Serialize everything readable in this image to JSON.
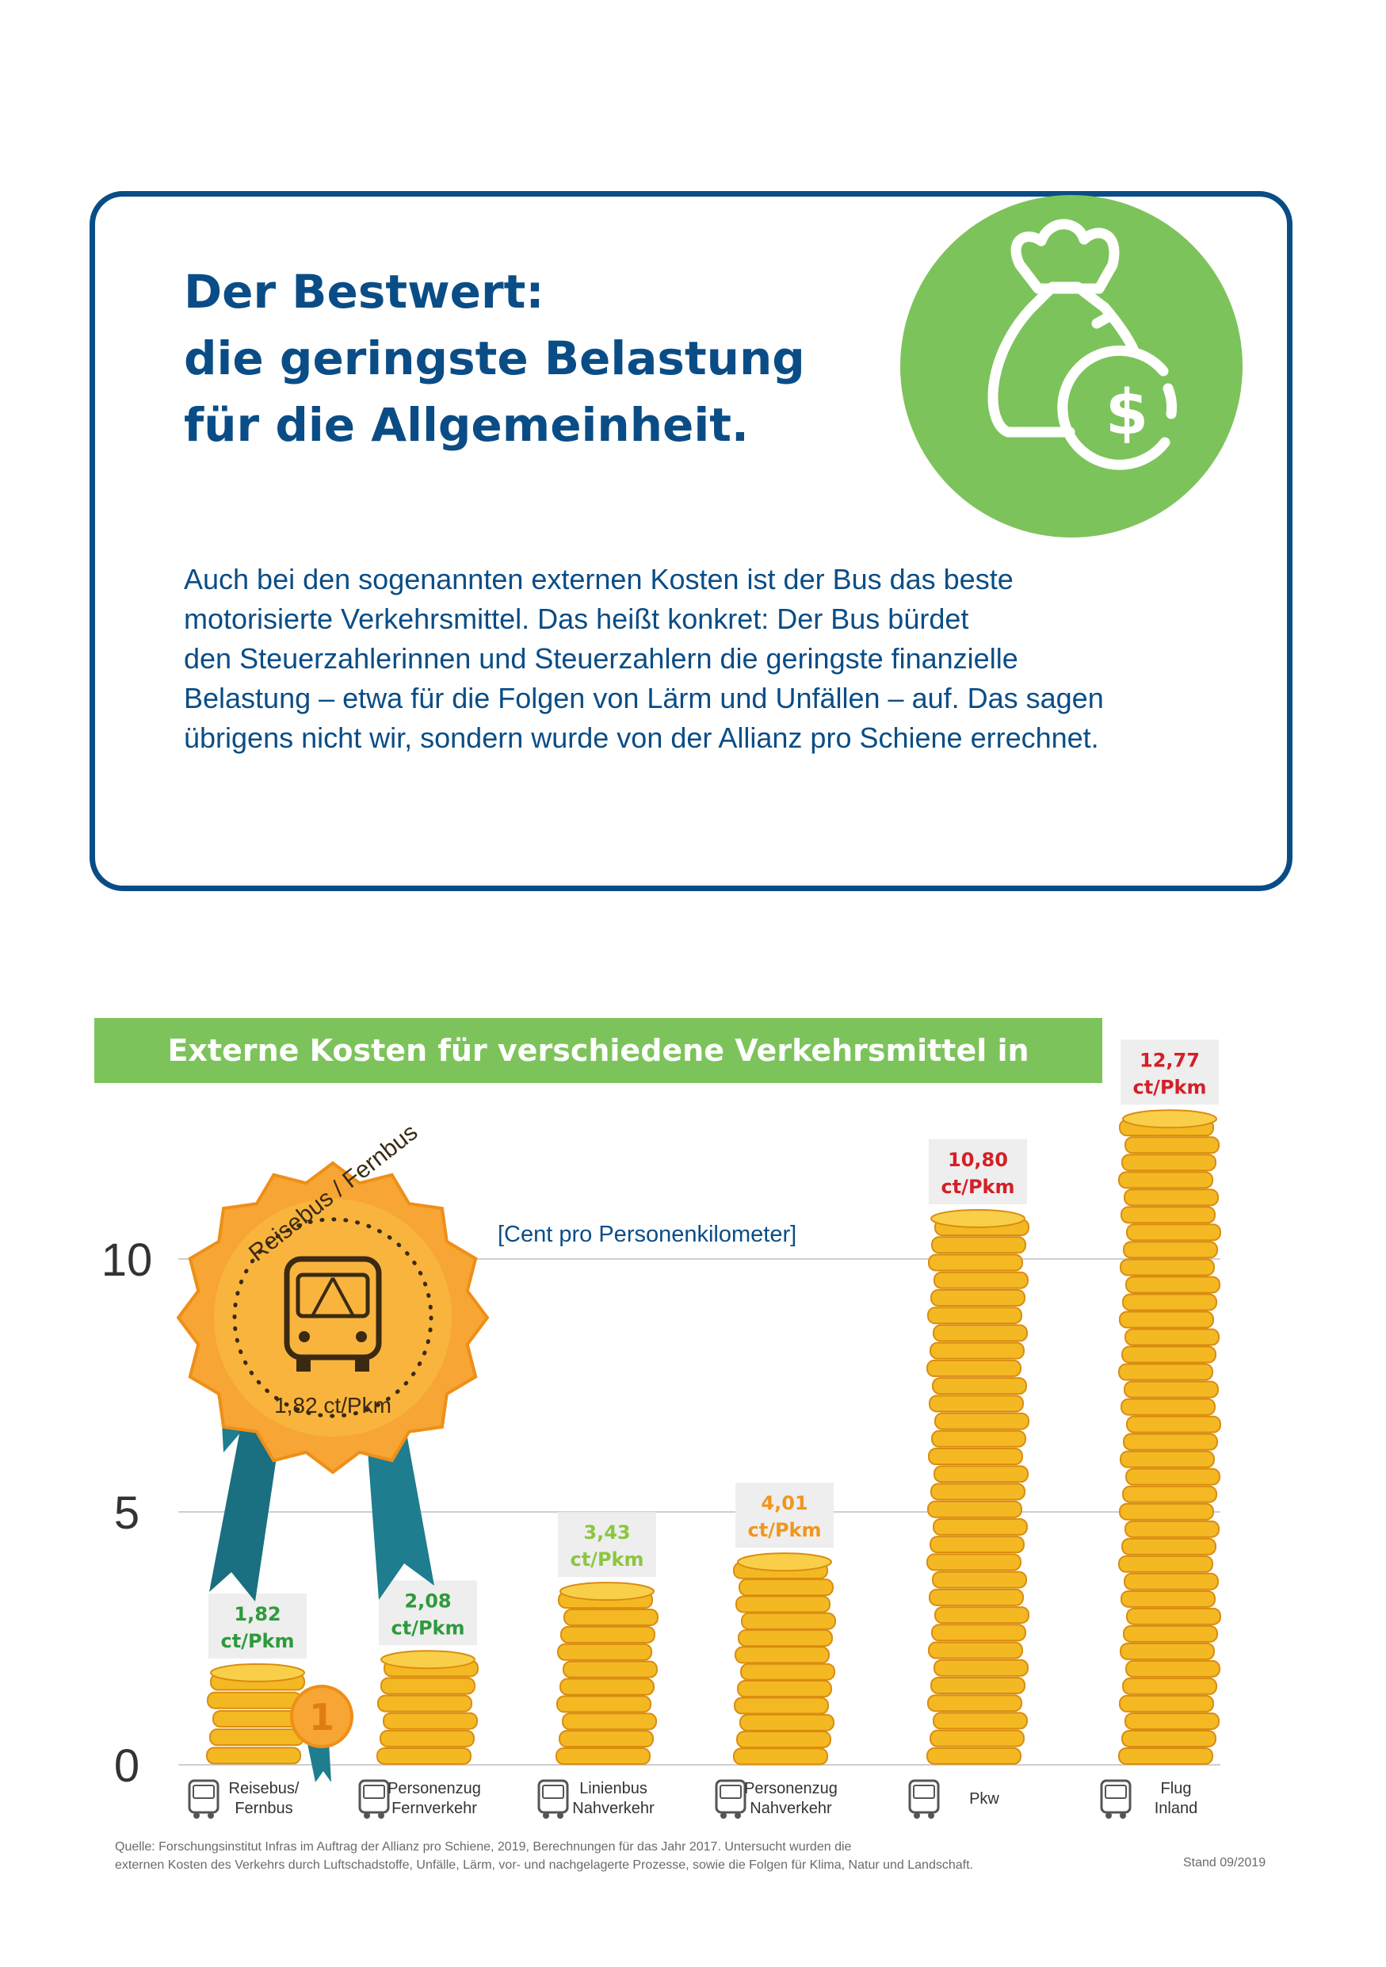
{
  "info_box": {
    "title_lines": [
      "Der Bestwert:",
      "die geringste Belastung",
      "für die Allgemeinheit."
    ],
    "body_lines": [
      "Auch bei den sogenannten externen Kosten ist der Bus das beste",
      "motorisierte Verkehrsmittel. Das heißt konkret: Der Bus bürdet",
      "den Steuerzahlerinnen und Steuerzahlern die geringste finanzielle",
      "Belastung – etwa für die Folgen von Lärm und Unfällen – auf. Das sagen",
      "übrigens nicht wir, sondern wurde von der Allianz pro Schiene errechnet."
    ],
    "icon": "money-bag-dollar-icon",
    "icon_glyph": "$"
  },
  "chart_data": {
    "type": "bar",
    "title": "Externe Kosten für verschiedene Verkehrsmittel in Deutschland",
    "unit_label": "[Cent pro Personenkilometer]",
    "ylim": [
      0,
      12.77
    ],
    "yticks": [
      0,
      5,
      10
    ],
    "ytick_labels": [
      "0",
      "5",
      "10"
    ],
    "grid": true,
    "value_unit": "ct/Pkm",
    "categories": [
      {
        "lines": [
          "Reisebus/",
          "Fernbus"
        ],
        "icon": "coach-bus-icon"
      },
      {
        "lines": [
          "Personenzug",
          "Fernverkehr"
        ],
        "icon": "long-distance-train-icon"
      },
      {
        "lines": [
          "Linienbus",
          "Nahverkehr"
        ],
        "icon": "city-bus-icon"
      },
      {
        "lines": [
          "Personenzug",
          "Nahverkehr"
        ],
        "icon": "tram-icon"
      },
      {
        "lines": [
          "Pkw"
        ],
        "icon": "car-icon"
      },
      {
        "lines": [
          "Flug",
          "Inland"
        ],
        "icon": "airplane-icon"
      }
    ],
    "values": [
      1.82,
      2.08,
      3.43,
      4.01,
      10.8,
      12.77
    ],
    "value_labels": [
      "1,82",
      "2,08",
      "3,43",
      "4,01",
      "10,80",
      "12,77"
    ],
    "label_colors": [
      "#2e9a3d",
      "#2e9a3d",
      "#8cc63f",
      "#f0961e",
      "#d41f27",
      "#d41f27"
    ],
    "coin_color": "#f4b823",
    "badge": {
      "label": "Reisebus / Fernbus",
      "value_text": "1,82 ct/Pkm",
      "rank": "1",
      "icon": "rosette-badge-icon"
    }
  },
  "footer": {
    "source_lines": [
      "Quelle: Forschungsinstitut Infras im Auftrag der Allianz pro Schiene, 2019, Berechnungen für das Jahr 2017. Untersucht wurden die",
      "externen Kosten des Verkehrs durch Luftschadstoffe, Unfälle, Lärm, vor- und nachgelagerte Prozesse, sowie die Folgen für Klima, Natur und Landschaft."
    ],
    "stand": "Stand 09/2019"
  },
  "colors": {
    "brand_blue": "#0a4d86",
    "brand_green": "#7dc35b",
    "badge_orange": "#f7a534",
    "ribbon_teal": "#1e7d8e"
  }
}
